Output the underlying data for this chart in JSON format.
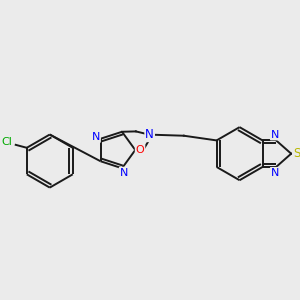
{
  "bg_color": "#ebebeb",
  "bond_color": "#1a1a1a",
  "bond_width": 1.4,
  "atom_colors": {
    "N": "#0000FF",
    "O": "#FF0000",
    "S": "#B8B800",
    "Cl": "#00AA00",
    "C": "#1a1a1a"
  }
}
